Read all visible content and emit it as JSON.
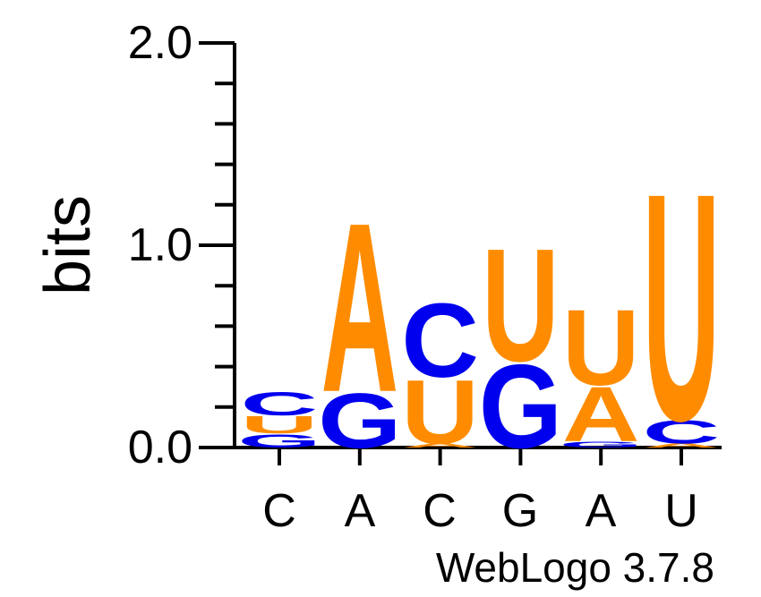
{
  "chart_data": {
    "type": "sequence-logo",
    "ylabel": "bits",
    "ylim": [
      0,
      2.0
    ],
    "yticks": [
      "0.0",
      "1.0",
      "2.0"
    ],
    "categories": [
      "C",
      "A",
      "C",
      "G",
      "A",
      "U"
    ],
    "colors": {
      "A": "#ff8c00",
      "U": "#ff8c00",
      "C": "#0000ee",
      "G": "#0000ee"
    },
    "positions": [
      {
        "letters": [
          {
            "base": "G",
            "bits": 0.07
          },
          {
            "base": "U",
            "bits": 0.09
          },
          {
            "base": "C",
            "bits": 0.12
          }
        ]
      },
      {
        "letters": [
          {
            "base": "G",
            "bits": 0.28
          },
          {
            "base": "A",
            "bits": 0.87
          }
        ]
      },
      {
        "letters": [
          {
            "base": "A",
            "bits": 0.02
          },
          {
            "base": "U",
            "bits": 0.33
          },
          {
            "base": "C",
            "bits": 0.38
          }
        ]
      },
      {
        "letters": [
          {
            "base": "G",
            "bits": 0.43
          },
          {
            "base": "U",
            "bits": 0.58
          }
        ]
      },
      {
        "letters": [
          {
            "base": "G",
            "bits": 0.03
          },
          {
            "base": "A",
            "bits": 0.28
          },
          {
            "base": "U",
            "bits": 0.39
          }
        ]
      },
      {
        "letters": [
          {
            "base": "A",
            "bits": 0.02
          },
          {
            "base": "C",
            "bits": 0.12
          },
          {
            "base": "U",
            "bits": 1.17
          }
        ]
      }
    ]
  },
  "footer": "WebLogo 3.7.8"
}
